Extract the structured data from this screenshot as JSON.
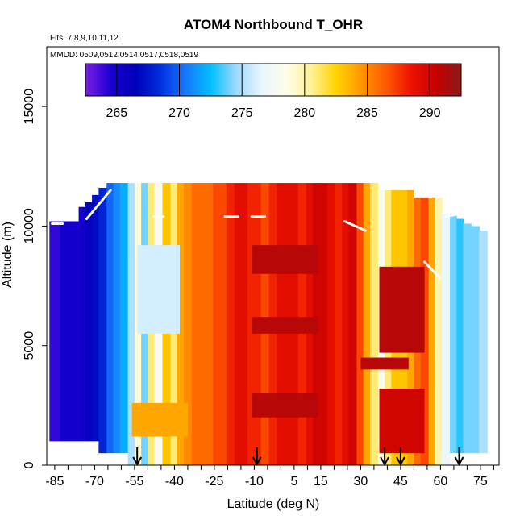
{
  "chart_data": {
    "type": "heatmap",
    "title": "ATOM4 Northbound T_OHR",
    "flights_label": "Flts: 7,8,9,10,11,12",
    "dates_label": "MMDD: 0509,0512,0514,0517,0518,0519",
    "xlabel": "Latitude (deg N)",
    "ylabel": "Altitude (m)",
    "xlim": [
      -88,
      82
    ],
    "ylim": [
      0,
      17500
    ],
    "x_ticks": [
      -85,
      -70,
      -55,
      -40,
      -25,
      -10,
      5,
      15,
      30,
      45,
      60,
      75
    ],
    "y_ticks": [
      0,
      5000,
      10000,
      15000
    ],
    "colorbar": {
      "range": [
        262.5,
        292.5
      ],
      "tick_values": [
        265,
        270,
        275,
        280,
        285,
        290
      ],
      "colors": [
        "#7a1fe3",
        "#1a00d4",
        "#0000b8",
        "#0030e0",
        "#1877ff",
        "#00bfff",
        "#9ad9ff",
        "#e6f5ff",
        "#fffde8",
        "#fff199",
        "#ffd400",
        "#ff9800",
        "#ff5a00",
        "#ee1200",
        "#c60000",
        "#8b1a1a"
      ]
    },
    "arrow_latitudes": [
      -54,
      -9,
      39,
      45,
      67
    ],
    "latitude_bins": [
      -86,
      -84,
      -82,
      -80,
      -77,
      -75,
      -72,
      -70,
      -67,
      -64,
      -62,
      -59,
      -56,
      -54,
      -51,
      -49,
      -46,
      -43,
      -40,
      -38,
      -35,
      -32,
      -30,
      -27,
      -24,
      -22,
      -19,
      -16,
      -14,
      -11,
      -9,
      -6,
      -3,
      0,
      3,
      5,
      8,
      11,
      13,
      16,
      19,
      22,
      24,
      27,
      30,
      32,
      35,
      38,
      40,
      43,
      46,
      49,
      51,
      54,
      57,
      59,
      62,
      65,
      67,
      70,
      73,
      76
    ],
    "column_tops_m": [
      10200,
      10200,
      10200,
      10200,
      10200,
      10800,
      11000,
      11300,
      11600,
      11800,
      11800,
      11800,
      11800,
      11800,
      11800,
      11800,
      11800,
      11800,
      11800,
      11800,
      11800,
      11800,
      11800,
      11800,
      11800,
      11800,
      11800,
      11800,
      11800,
      11800,
      11800,
      11800,
      11800,
      11800,
      11800,
      11800,
      11800,
      11800,
      11800,
      11800,
      11800,
      11800,
      11800,
      11800,
      11800,
      11800,
      11800,
      11500,
      11500,
      11500,
      11500,
      11500,
      11200,
      11200,
      11200,
      11200,
      10500,
      10500,
      10300,
      10100,
      10000,
      9800
    ],
    "column_bottoms_m": [
      1000,
      1000,
      1000,
      1000,
      1000,
      1000,
      1000,
      1000,
      500,
      500,
      500,
      500,
      0,
      0,
      0,
      0,
      0,
      0,
      0,
      0,
      0,
      0,
      0,
      0,
      0,
      0,
      0,
      0,
      0,
      0,
      0,
      0,
      0,
      0,
      0,
      0,
      0,
      0,
      0,
      0,
      0,
      0,
      0,
      0,
      0,
      0,
      0,
      0,
      0,
      0,
      0,
      0,
      0,
      0,
      0,
      0,
      0,
      500,
      500,
      500,
      500,
      500
    ],
    "column_temperature_k": [
      264,
      264,
      265,
      265,
      265,
      265,
      266,
      267,
      268,
      270,
      271,
      272,
      275,
      279,
      274,
      281,
      278,
      283,
      281,
      284,
      285,
      286,
      286,
      286,
      287,
      287,
      288,
      289,
      289,
      288,
      288,
      287,
      288,
      289,
      289,
      289,
      288,
      289,
      290,
      290,
      289,
      288,
      289,
      290,
      287,
      284,
      281,
      278,
      281,
      283,
      283,
      284,
      286,
      287,
      284,
      280,
      277,
      274,
      273,
      274,
      274,
      275
    ],
    "overlays": [
      {
        "lat_range": [
          -11,
          14
        ],
        "alt_range": [
          8000,
          9200
        ],
        "temperature_k": 291
      },
      {
        "lat_range": [
          -11,
          14
        ],
        "alt_range": [
          5500,
          6200
        ],
        "temperature_k": 291
      },
      {
        "lat_range": [
          -11,
          14
        ],
        "alt_range": [
          2000,
          3000
        ],
        "temperature_k": 291
      },
      {
        "lat_range": [
          30,
          48
        ],
        "alt_range": [
          4000,
          4500
        ],
        "temperature_k": 291
      },
      {
        "lat_range": [
          37,
          54
        ],
        "alt_range": [
          4700,
          8300
        ],
        "temperature_k": 291
      },
      {
        "lat_range": [
          37,
          54
        ],
        "alt_range": [
          500,
          3200
        ],
        "temperature_k": 290
      },
      {
        "lat_range": [
          -54,
          -38
        ],
        "alt_range": [
          5500,
          9200
        ],
        "temperature_k": 276
      },
      {
        "lat_range": [
          -56,
          -35
        ],
        "alt_range": [
          1200,
          2600
        ],
        "temperature_k": 284
      }
    ],
    "flight_tracks": [
      {
        "lat": [
          -86,
          -82
        ],
        "alt": [
          10100,
          10100
        ]
      },
      {
        "lat": [
          -73,
          -64
        ],
        "alt": [
          10300,
          11500
        ]
      },
      {
        "lat": [
          -48,
          -44
        ],
        "alt": [
          10400,
          10400
        ]
      },
      {
        "lat": [
          -21,
          -16
        ],
        "alt": [
          10400,
          10400
        ]
      },
      {
        "lat": [
          -11,
          -6
        ],
        "alt": [
          10400,
          10400
        ]
      },
      {
        "lat": [
          24,
          32
        ],
        "alt": [
          10200,
          9800
        ]
      },
      {
        "lat": [
          54,
          60
        ],
        "alt": [
          8500,
          7800
        ]
      },
      {
        "lat": [
          62,
          72
        ],
        "alt": [
          10400,
          10600
        ]
      },
      {
        "lat": [
          33,
          33
        ],
        "alt": [
          12500,
          13000
        ]
      }
    ],
    "grid": false,
    "legend": "top"
  }
}
